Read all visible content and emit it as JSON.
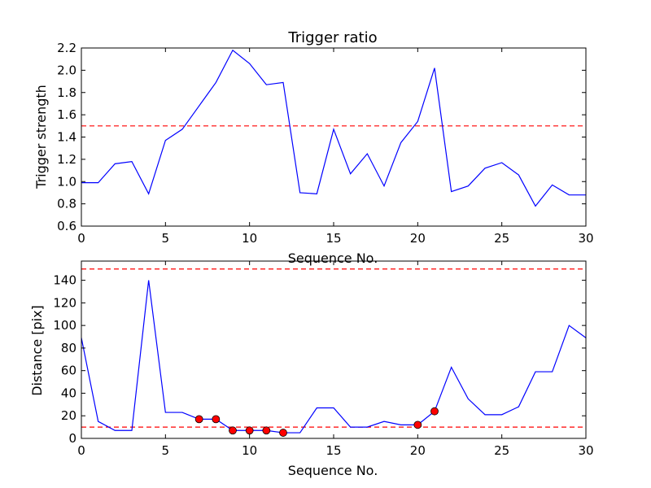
{
  "chart_data": [
    {
      "type": "line",
      "title": "Trigger ratio",
      "xlabel": "Sequence No.",
      "ylabel": "Trigger strength",
      "xlim": [
        0,
        30
      ],
      "ylim": [
        0.6,
        2.2
      ],
      "xticks": [
        "0",
        "5",
        "10",
        "15",
        "20",
        "25",
        "30"
      ],
      "yticks": [
        "0.6",
        "0.8",
        "1.0",
        "1.2",
        "1.4",
        "1.6",
        "1.8",
        "2.0",
        "2.2"
      ],
      "grid": false,
      "series": [
        {
          "color": "#0000ff",
          "x": [
            0,
            1,
            2,
            3,
            4,
            5,
            6,
            7,
            8,
            9,
            10,
            11,
            12,
            13,
            14,
            15,
            16,
            17,
            18,
            19,
            20,
            21,
            22,
            23,
            24,
            25,
            26,
            27,
            28,
            29,
            30
          ],
          "values": [
            0.99,
            0.99,
            1.16,
            1.18,
            0.89,
            1.37,
            1.47,
            1.68,
            1.89,
            2.18,
            2.06,
            1.87,
            1.89,
            0.9,
            0.89,
            1.47,
            1.07,
            1.25,
            0.96,
            1.35,
            1.54,
            2.02,
            0.91,
            0.96,
            1.12,
            1.17,
            1.06,
            0.78,
            0.97,
            0.88,
            0.88
          ]
        }
      ],
      "threshold_lines": [
        {
          "y": 1.5,
          "color": "#ff0000",
          "style": "dashed"
        }
      ]
    },
    {
      "type": "line",
      "title": "",
      "xlabel": "Sequence No.",
      "ylabel": "Distance [pix]",
      "xlim": [
        0,
        30
      ],
      "ylim": [
        0,
        157
      ],
      "xticks": [
        "0",
        "5",
        "10",
        "15",
        "20",
        "25",
        "30"
      ],
      "yticks": [
        "0",
        "20",
        "40",
        "60",
        "80",
        "100",
        "120",
        "140"
      ],
      "grid": false,
      "series": [
        {
          "color": "#0000ff",
          "x": [
            0,
            1,
            2,
            3,
            4,
            5,
            6,
            7,
            8,
            9,
            10,
            11,
            12,
            13,
            14,
            15,
            16,
            17,
            18,
            19,
            20,
            21,
            22,
            23,
            24,
            25,
            26,
            27,
            28,
            29,
            30
          ],
          "values": [
            89,
            15,
            7,
            7,
            140,
            23,
            23,
            17,
            17,
            7,
            7,
            7,
            5,
            5,
            27,
            27,
            10,
            10,
            15,
            12,
            12,
            24,
            63,
            35,
            21,
            21,
            28,
            59,
            59,
            100,
            89
          ]
        }
      ],
      "highlighted_points": {
        "color": "#ff0000",
        "x": [
          7,
          8,
          9,
          10,
          11,
          12,
          20,
          21
        ],
        "values": [
          17,
          17,
          7,
          7,
          7,
          5,
          12,
          24
        ]
      },
      "threshold_lines": [
        {
          "y": 150,
          "color": "#ff0000",
          "style": "dashed"
        },
        {
          "y": 10,
          "color": "#ff0000",
          "style": "dashed"
        }
      ]
    }
  ]
}
